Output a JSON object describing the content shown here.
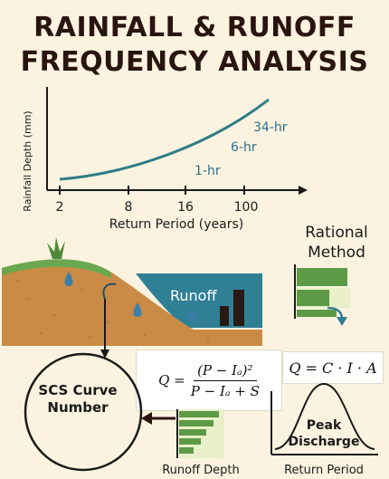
{
  "title": {
    "line1": "RAINFALL & RUNOFF",
    "line2": "FREQUENCY ANALYSIS"
  },
  "chart_data": {
    "type": "line",
    "ylabel": "Rainfall Depth (mm)",
    "xlabel": "Return Period (years)",
    "x_ticks": [
      "2",
      "8",
      "16",
      "100"
    ],
    "series_labels": [
      "34-hr",
      "6-hr",
      "1-hr"
    ],
    "colors": {
      "curve": "#2e7d86",
      "axis": "#1a1a1a",
      "series_label": "#2e6f8e"
    }
  },
  "runoff_panel": {
    "label": "Runoff",
    "colors": {
      "soil": "#c98b45",
      "grass": "#6aa84f",
      "water": "#2f7f95",
      "drop": "#3b7fa8"
    }
  },
  "rational": {
    "title_line1": "Rational",
    "title_line2": "Method",
    "equation": "Q = C · I · A"
  },
  "scs": {
    "title_line1": "SCS Curve",
    "title_line2": "Number",
    "equation_lhs": "Q =",
    "equation_num": "(P − Iₐ)²",
    "equation_den": "P − Iₐ + S"
  },
  "runoff_depth_label": "Runoff Depth",
  "peak": {
    "label_line1": "Peak",
    "label_line2": "Discharge",
    "xlabel": "Return Period"
  },
  "colors": {
    "background": "#fbf3e0",
    "bars_green": "#5c9a45",
    "bars_light": "#e9efc9"
  }
}
